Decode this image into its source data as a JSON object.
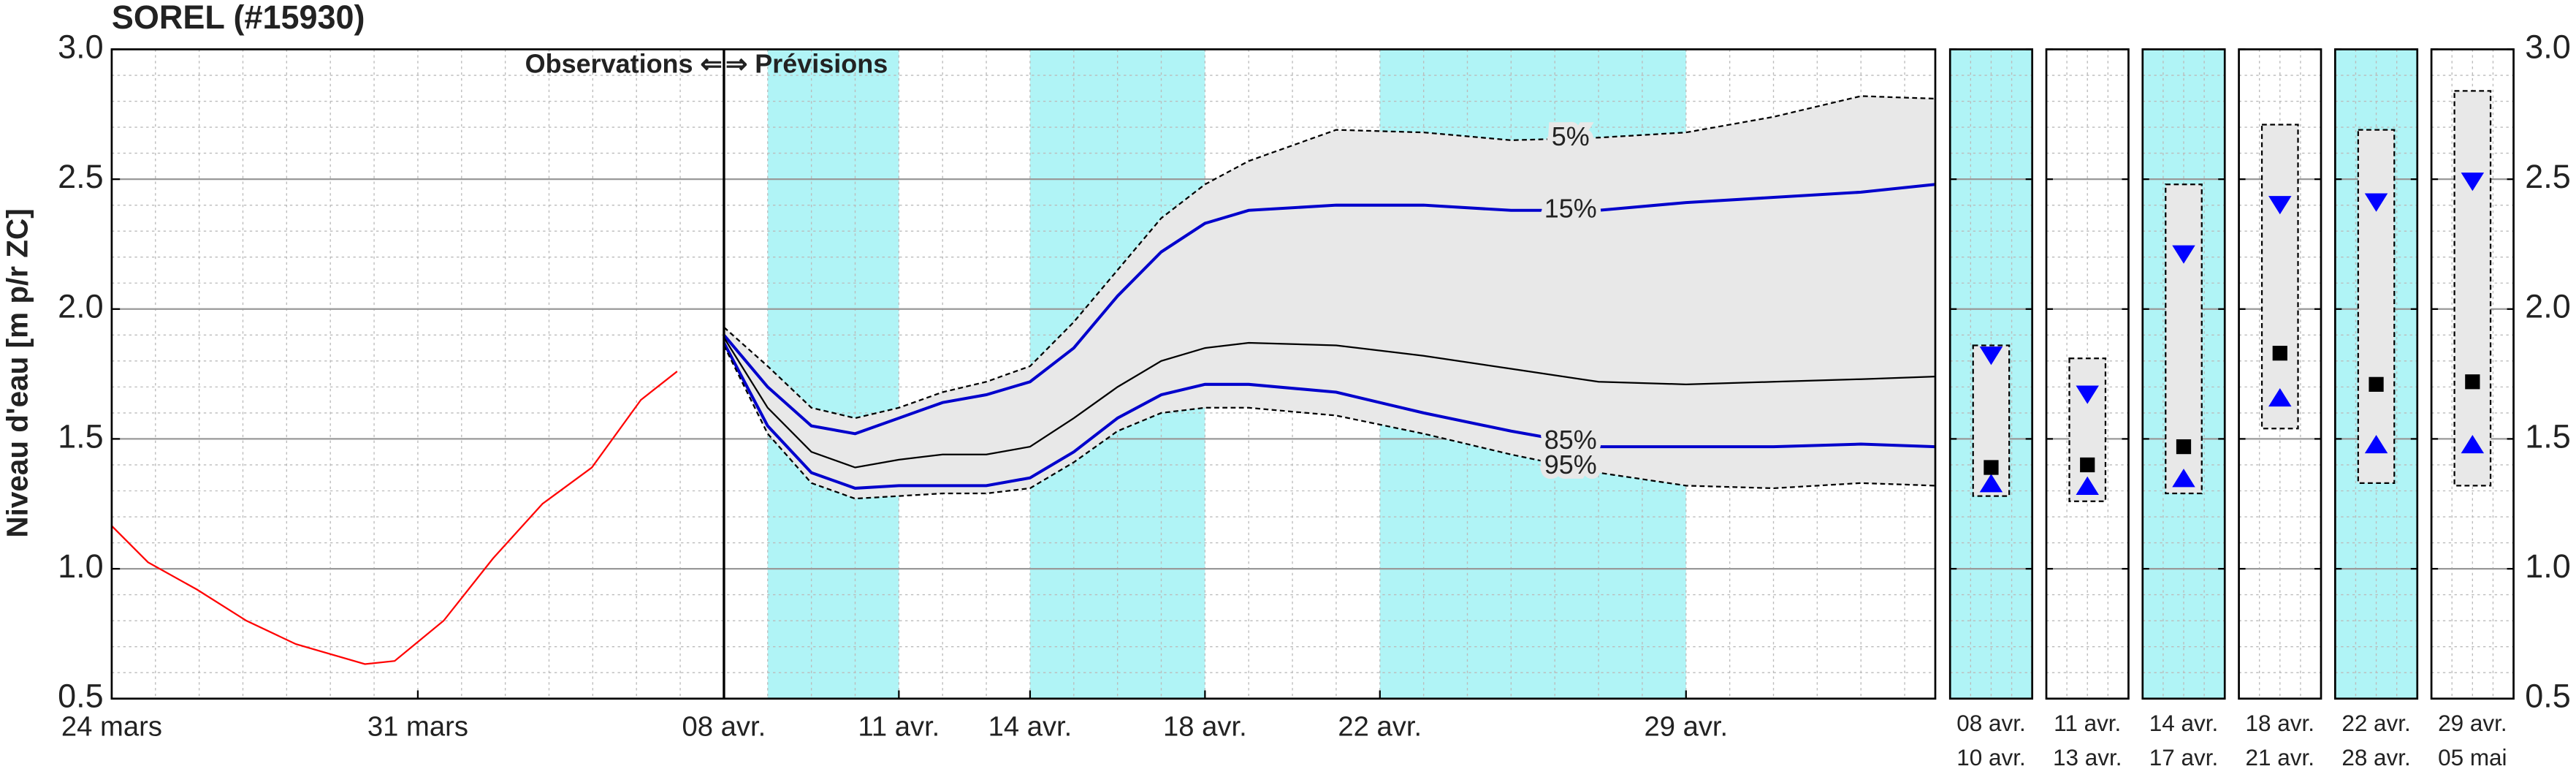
{
  "chart_data": [
    {
      "type": "line",
      "title": "SOREL (#15930)",
      "ylabel": "Niveau d'eau [m p/r ZC]",
      "annotations": [
        "Observations ⇐",
        "⇒ Prévisions"
      ],
      "divider": 14,
      "xlim": [
        0,
        41.7
      ],
      "xticks": [
        {
          "value": 0,
          "label": "24 mars"
        },
        {
          "value": 7,
          "label": "31 mars"
        },
        {
          "value": 14,
          "label": "08 avr."
        },
        {
          "value": 18,
          "label": "11 avr."
        },
        {
          "value": 21,
          "label": "14 avr."
        },
        {
          "value": 25,
          "label": "18 avr."
        },
        {
          "value": 29,
          "label": "22 avr."
        },
        {
          "value": 36,
          "label": "29 avr."
        }
      ],
      "ylim": [
        0.5,
        3
      ],
      "yticks": [
        0.5,
        {
          "value": 1,
          "label": "1.0"
        },
        1.5,
        {
          "value": 2,
          "label": "2.0"
        },
        2.5,
        {
          "value": 3,
          "label": "3.0"
        }
      ],
      "grid": true,
      "minor_grid": true,
      "shaded_ranges": [
        [
          15,
          18
        ],
        [
          21,
          25
        ],
        [
          29,
          36
        ]
      ],
      "shade_color": "#b0f4f6",
      "band_color": "#e8e8e8",
      "series": [
        {
          "color": "#ff0000",
          "style": "solid",
          "x": [
            0,
            0.83,
            1.95,
            3.08,
            4.21,
            5.79,
            6.47,
            7.59,
            8.72,
            9.85,
            10.98,
            12.1,
            12.93
          ],
          "values": [
            1.165,
            1.025,
            0.92,
            0.8,
            0.71,
            0.633,
            0.645,
            0.8,
            1.04,
            1.25,
            1.39,
            1.65,
            1.76
          ]
        },
        {
          "name": "5%",
          "color": "#000000",
          "style": "dashed",
          "x": [
            14,
            15,
            16,
            17,
            18,
            19,
            20,
            21,
            22,
            23,
            24,
            25,
            26,
            28,
            30,
            32,
            34,
            36,
            38,
            40,
            41.7
          ],
          "values": [
            1.93,
            1.78,
            1.62,
            1.58,
            1.62,
            1.68,
            1.72,
            1.78,
            1.95,
            2.15,
            2.35,
            2.48,
            2.57,
            2.69,
            2.68,
            2.65,
            2.66,
            2.68,
            2.74,
            2.82,
            2.81
          ]
        },
        {
          "name": "15%",
          "color": "#0000cc",
          "style": "solid",
          "x": [
            14,
            15,
            16,
            17,
            18,
            19,
            20,
            21,
            22,
            23,
            24,
            25,
            26,
            28,
            30,
            32,
            34,
            36,
            38,
            40,
            41.7
          ],
          "values": [
            1.9,
            1.7,
            1.55,
            1.52,
            1.58,
            1.64,
            1.67,
            1.72,
            1.85,
            2.05,
            2.22,
            2.33,
            2.38,
            2.4,
            2.4,
            2.38,
            2.38,
            2.41,
            2.43,
            2.45,
            2.48
          ]
        },
        {
          "color": "#000000",
          "style": "thin",
          "x": [
            14,
            15,
            16,
            17,
            18,
            19,
            20,
            21,
            22,
            23,
            24,
            25,
            26,
            28,
            30,
            32,
            34,
            36,
            38,
            40,
            41.7
          ],
          "values": [
            1.89,
            1.62,
            1.45,
            1.39,
            1.42,
            1.44,
            1.44,
            1.47,
            1.58,
            1.7,
            1.8,
            1.85,
            1.87,
            1.86,
            1.82,
            1.77,
            1.72,
            1.71,
            1.72,
            1.73,
            1.74
          ]
        },
        {
          "name": "85%",
          "color": "#0000cc",
          "style": "solid",
          "x": [
            14,
            15,
            16,
            17,
            18,
            19,
            20,
            21,
            22,
            23,
            24,
            25,
            26,
            28,
            30,
            32,
            34,
            36,
            38,
            40,
            41.7
          ],
          "values": [
            1.87,
            1.55,
            1.37,
            1.31,
            1.32,
            1.32,
            1.32,
            1.35,
            1.45,
            1.58,
            1.67,
            1.71,
            1.71,
            1.68,
            1.6,
            1.53,
            1.47,
            1.47,
            1.47,
            1.48,
            1.47
          ]
        },
        {
          "name": "95%",
          "color": "#000000",
          "style": "dashed",
          "x": [
            14,
            15,
            16,
            17,
            18,
            19,
            20,
            21,
            22,
            23,
            24,
            25,
            26,
            28,
            30,
            32,
            34,
            36,
            38,
            40,
            41.7
          ],
          "values": [
            1.86,
            1.52,
            1.33,
            1.27,
            1.28,
            1.29,
            1.29,
            1.31,
            1.41,
            1.53,
            1.6,
            1.62,
            1.62,
            1.59,
            1.52,
            1.44,
            1.37,
            1.32,
            1.31,
            1.33,
            1.32
          ]
        }
      ]
    },
    {
      "type": "range",
      "categories": [
        [
          "08 avr.",
          "10 avr."
        ],
        [
          "11 avr.",
          "13 avr."
        ],
        [
          "14 avr.",
          "17 avr."
        ],
        [
          "18 avr.",
          "21 avr."
        ],
        [
          "22 avr.",
          "28 avr."
        ],
        [
          "29 avr.",
          "05 mai"
        ]
      ],
      "shaded": [
        true,
        false,
        true,
        false,
        true,
        false
      ],
      "shade_color": "#b0f4f6",
      "band_color": "#e8e8e8",
      "marker_color": "#0000ff",
      "high": [
        1.86,
        1.81,
        2.48,
        2.71,
        2.69,
        2.84
      ],
      "q_high": [
        1.82,
        1.67,
        2.21,
        2.4,
        2.41,
        2.49
      ],
      "median": [
        1.39,
        1.4,
        1.47,
        1.83,
        1.71,
        1.72
      ],
      "q_low": [
        1.33,
        1.32,
        1.35,
        1.66,
        1.48,
        1.48
      ],
      "low": [
        1.28,
        1.26,
        1.29,
        1.54,
        1.33,
        1.32
      ],
      "ylim": [
        0.5,
        3
      ],
      "yticks": [
        0.5,
        {
          "value": 1,
          "label": "1.0"
        },
        1.5,
        {
          "value": 2,
          "label": "2.0"
        },
        2.5,
        {
          "value": 3,
          "label": "3.0"
        }
      ],
      "grid": true,
      "minor_grid": true
    }
  ]
}
